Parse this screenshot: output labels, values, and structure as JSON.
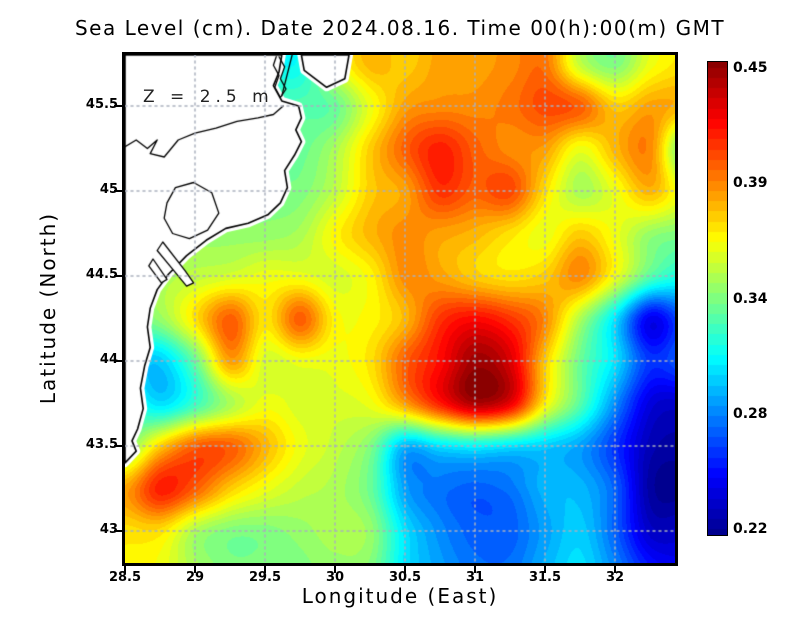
{
  "title": "Sea Level (cm). Date 2024.08.16. Time 00(h):00(m) GMT",
  "annotation": "Z = 2.5 m",
  "axes": {
    "x": {
      "label": "Longitude (East)",
      "tick_values": [
        28.5,
        29,
        29.5,
        30,
        30.5,
        31,
        31.5,
        32
      ],
      "tick_labels": [
        "28.5",
        "29",
        "29.5",
        "30",
        "30.5",
        "31",
        "31.5",
        "32"
      ],
      "min": 28.5,
      "max": 32.43
    },
    "y": {
      "label": "Latitude (North)",
      "tick_values": [
        45.5,
        45,
        44.5,
        44,
        43.5,
        43
      ],
      "tick_labels": [
        "45.5",
        "45",
        "44.5",
        "44",
        "43.5",
        "43"
      ],
      "min": 42.81,
      "max": 45.8
    }
  },
  "colorbar": {
    "min": 0.22,
    "max": 0.45,
    "tick_labels": [
      "0.45",
      "0.39",
      "0.34",
      "0.28",
      "0.22"
    ],
    "top_color": "#8b0000",
    "bottom_color": "#00008f"
  },
  "chart_data": {
    "type": "heatmap",
    "title": "Sea Level (cm). Date 2024.08.16. Time 00(h):00(m) GMT",
    "xlabel": "Longitude (East)",
    "ylabel": "Latitude (North)",
    "colormap": "jet",
    "value_range": [
      0.22,
      0.45
    ],
    "lon_range": [
      28.5,
      32.43
    ],
    "lat_range": [
      42.81,
      45.8
    ],
    "grid_lon_start": 28.5,
    "grid_lon_step": 0.25,
    "grid_lat_start": 45.75,
    "grid_lat_step": -0.25,
    "grid_lons_lines": [
      29,
      29.5,
      30,
      30.5,
      31,
      31.5,
      32
    ],
    "grid_lats_lines": [
      43,
      43.5,
      44,
      44.5,
      45,
      45.5
    ],
    "values": [
      [
        0.33,
        0.33,
        0.32,
        0.31,
        0.31,
        0.31,
        0.355,
        0.38,
        0.375,
        0.385,
        0.385,
        0.39,
        0.395,
        0.35,
        0.335,
        0.36,
        0.37
      ],
      [
        0.33,
        0.33,
        0.33,
        0.32,
        0.325,
        0.325,
        0.33,
        0.36,
        0.385,
        0.39,
        0.39,
        0.395,
        0.405,
        0.4,
        0.375,
        0.385,
        0.38
      ],
      [
        0.34,
        0.34,
        0.335,
        0.33,
        0.33,
        0.33,
        0.345,
        0.375,
        0.4,
        0.415,
        0.4,
        0.39,
        0.385,
        0.36,
        0.38,
        0.39,
        0.325
      ],
      [
        0.34,
        0.34,
        0.335,
        0.335,
        0.335,
        0.335,
        0.35,
        0.375,
        0.385,
        0.41,
        0.4,
        0.405,
        0.37,
        0.345,
        0.36,
        0.38,
        0.355
      ],
      [
        0.34,
        0.34,
        0.34,
        0.34,
        0.34,
        0.345,
        0.365,
        0.38,
        0.39,
        0.385,
        0.38,
        0.37,
        0.36,
        0.375,
        0.36,
        0.34,
        0.335
      ],
      [
        0.34,
        0.345,
        0.35,
        0.355,
        0.36,
        0.36,
        0.355,
        0.365,
        0.39,
        0.385,
        0.375,
        0.37,
        0.375,
        0.39,
        0.36,
        0.325,
        0.31
      ],
      [
        0.33,
        0.34,
        0.37,
        0.4,
        0.37,
        0.4,
        0.365,
        0.365,
        0.38,
        0.41,
        0.42,
        0.41,
        0.39,
        0.345,
        0.3,
        0.245,
        0.27
      ],
      [
        0.3,
        0.295,
        0.33,
        0.385,
        0.355,
        0.36,
        0.36,
        0.37,
        0.4,
        0.42,
        0.445,
        0.43,
        0.375,
        0.33,
        0.3,
        0.26,
        0.27
      ],
      [
        0.32,
        0.3,
        0.32,
        0.345,
        0.36,
        0.355,
        0.355,
        0.36,
        0.385,
        0.415,
        0.44,
        0.425,
        0.365,
        0.325,
        0.28,
        0.24,
        0.235
      ],
      [
        0.335,
        0.375,
        0.4,
        0.4,
        0.38,
        0.36,
        0.35,
        0.335,
        0.29,
        0.3,
        0.305,
        0.3,
        0.295,
        0.285,
        0.26,
        0.23,
        0.225
      ],
      [
        0.385,
        0.415,
        0.4,
        0.375,
        0.36,
        0.35,
        0.345,
        0.33,
        0.285,
        0.275,
        0.27,
        0.275,
        0.29,
        0.29,
        0.27,
        0.225,
        0.22
      ],
      [
        0.37,
        0.37,
        0.345,
        0.335,
        0.335,
        0.34,
        0.345,
        0.34,
        0.3,
        0.28,
        0.27,
        0.27,
        0.285,
        0.295,
        0.27,
        0.235,
        0.235
      ],
      [
        0.365,
        0.36,
        0.345,
        0.335,
        0.335,
        0.335,
        0.34,
        0.335,
        0.3,
        0.285,
        0.275,
        0.275,
        0.29,
        0.3,
        0.28,
        0.255,
        0.245
      ]
    ],
    "coast": {
      "main": [
        [
          28.5,
          45.8
        ],
        [
          29.62,
          45.8
        ],
        [
          29.6,
          45.7
        ],
        [
          29.56,
          45.62
        ],
        [
          29.62,
          45.53
        ],
        [
          29.74,
          45.5
        ],
        [
          29.76,
          45.43
        ],
        [
          29.72,
          45.36
        ],
        [
          29.76,
          45.29
        ],
        [
          29.71,
          45.21
        ],
        [
          29.64,
          45.12
        ],
        [
          29.66,
          45.02
        ],
        [
          29.61,
          44.93
        ],
        [
          29.52,
          44.86
        ],
        [
          29.38,
          44.81
        ],
        [
          29.22,
          44.78
        ],
        [
          29.08,
          44.71
        ],
        [
          28.94,
          44.62
        ],
        [
          28.81,
          44.51
        ],
        [
          28.73,
          44.42
        ],
        [
          28.68,
          44.31
        ],
        [
          28.66,
          44.2
        ],
        [
          28.68,
          44.08
        ],
        [
          28.64,
          43.97
        ],
        [
          28.61,
          43.84
        ],
        [
          28.63,
          43.72
        ],
        [
          28.59,
          43.6
        ],
        [
          28.55,
          43.53
        ],
        [
          28.58,
          43.47
        ],
        [
          28.5,
          43.4
        ]
      ],
      "pocket": [
        [
          29.76,
          45.8
        ],
        [
          30.1,
          45.8
        ],
        [
          30.07,
          45.66
        ],
        [
          29.94,
          45.61
        ],
        [
          29.78,
          45.71
        ]
      ],
      "liman": [
        [
          29.6,
          45.79
        ],
        [
          29.64,
          45.73
        ],
        [
          29.61,
          45.66
        ],
        [
          29.65,
          45.6
        ],
        [
          29.61,
          45.55
        ],
        [
          29.57,
          45.61
        ],
        [
          29.6,
          45.68
        ],
        [
          29.56,
          45.74
        ],
        [
          29.58,
          45.79
        ]
      ],
      "river": [
        [
          28.5,
          45.26
        ],
        [
          28.58,
          45.3
        ],
        [
          28.66,
          45.25
        ],
        [
          28.73,
          45.3
        ],
        [
          28.68,
          45.22
        ],
        [
          28.78,
          45.2
        ],
        [
          28.88,
          45.3
        ],
        [
          29.0,
          45.34
        ],
        [
          29.15,
          45.37
        ],
        [
          29.3,
          45.41
        ],
        [
          29.45,
          45.43
        ],
        [
          29.56,
          45.45
        ],
        [
          29.63,
          45.5
        ]
      ],
      "lagoon": [
        [
          28.8,
          44.93
        ],
        [
          28.86,
          45.02
        ],
        [
          28.99,
          45.05
        ],
        [
          29.12,
          44.99
        ],
        [
          29.17,
          44.87
        ],
        [
          29.09,
          44.77
        ],
        [
          28.96,
          44.72
        ],
        [
          28.84,
          44.75
        ],
        [
          28.78,
          44.84
        ]
      ],
      "spit1": [
        [
          28.77,
          44.7
        ],
        [
          28.93,
          44.53
        ],
        [
          28.99,
          44.46
        ],
        [
          28.94,
          44.44
        ],
        [
          28.84,
          44.54
        ],
        [
          28.73,
          44.65
        ]
      ],
      "spit2": [
        [
          28.7,
          44.6
        ],
        [
          28.8,
          44.48
        ],
        [
          28.76,
          44.46
        ],
        [
          28.67,
          44.56
        ]
      ],
      "spit_line": [
        [
          29.7,
          45.82
        ],
        [
          29.62,
          45.56
        ]
      ]
    },
    "gridline_color": "#aab0be",
    "land_color": "#ffffff",
    "coastline_color": "#000000"
  }
}
